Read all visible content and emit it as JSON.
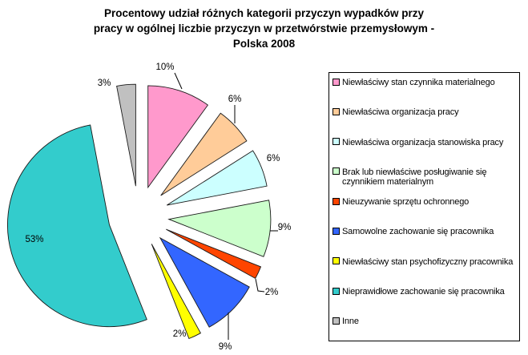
{
  "title_lines": [
    "Procentowy udział różnych kategorii przyczyn wypadków przy",
    "pracy w ogólnej liczbie przyczyn w przetwórstwie przemysłowym -",
    "Polska 2008"
  ],
  "chart_data": {
    "type": "pie",
    "title": "Procentowy udział różnych kategorii przyczyn wypadków przy pracy w ogólnej liczbie przyczyn w przetwórstwie przemysłowym - Polska 2008",
    "categories": [
      "Niewłaściwy stan czynnika materialnego",
      "Niewłaściwa organizacja pracy",
      "Niewłaściwa organizacja stanowiska pracy",
      "Brak lub niewłaściwe posługiwanie się czynnikiem materialnym",
      "Nieuzywanie sprzętu ochronnego",
      "Samowolne zachowanie się pracownika",
      "Niewłaściwy stan psychofizyczny pracownika",
      "Nieprawidłowe zachowanie się pracownika",
      "Inne"
    ],
    "values": [
      10,
      6,
      6,
      9,
      2,
      9,
      2,
      53,
      3
    ],
    "value_labels": [
      "10%",
      "6%",
      "6%",
      "9%",
      "2%",
      "9%",
      "2%",
      "53%",
      "3%"
    ],
    "colors": [
      "#FF99CC",
      "#FFCC99",
      "#CCFFFF",
      "#CCFFCC",
      "#FF4500",
      "#3366FF",
      "#FFFF00",
      "#33CCCC",
      "#C0C0C0"
    ],
    "stroke_color": "#1a1a1a",
    "legend_position": "right",
    "start_angle_deg": 0,
    "direction": "clockwise",
    "exploded": true
  }
}
